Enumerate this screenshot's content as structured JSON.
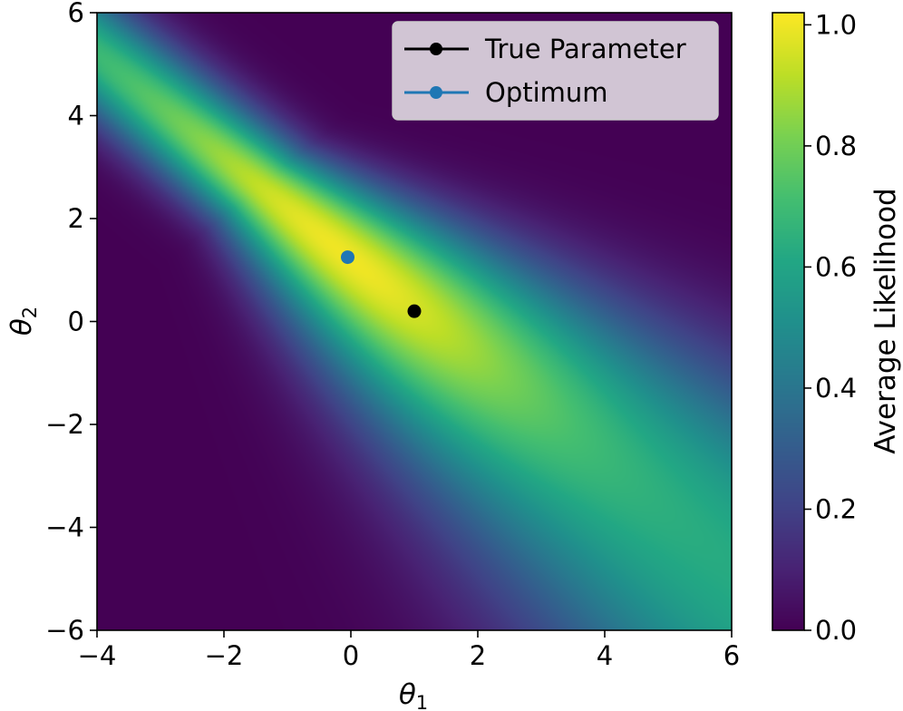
{
  "chart_data": {
    "type": "heatmap",
    "title": "",
    "xlabel": "θ",
    "xlabel_sub": "1",
    "ylabel": "θ",
    "ylabel_sub": "2",
    "xlim": [
      -4,
      6
    ],
    "ylim": [
      -6,
      6
    ],
    "x_ticks": [
      -4,
      -2,
      0,
      2,
      4,
      6
    ],
    "x_tick_labels": [
      "−4",
      "−2",
      "0",
      "2",
      "4",
      "6"
    ],
    "y_ticks": [
      -6,
      -4,
      -2,
      0,
      2,
      4,
      6
    ],
    "y_tick_labels": [
      "−6",
      "−4",
      "−2",
      "0",
      "2",
      "4",
      "6"
    ],
    "colormap": "viridis",
    "colorbar": {
      "label": "Average Likelihood",
      "range": [
        0.0,
        1.02
      ],
      "ticks": [
        0.0,
        0.2,
        0.4,
        0.6,
        0.8,
        1.0
      ],
      "tick_labels": [
        "0.0",
        "0.2",
        "0.4",
        "0.6",
        "0.8",
        "1.0"
      ]
    },
    "field": {
      "description_of_surface": "likelihood ridge along theta1 + theta2 ≈ 1.2, widening toward lower-right",
      "ridge_sum": 1.2,
      "peak_value": 1.0
    },
    "legend_position": "upper right",
    "series": [
      {
        "name": "True Parameter",
        "x": [
          1.0
        ],
        "y": [
          0.2
        ],
        "color": "#000000"
      },
      {
        "name": "Optimum",
        "x": [
          -0.05
        ],
        "y": [
          1.25
        ],
        "color": "#1f77b4"
      }
    ],
    "grid": false
  }
}
